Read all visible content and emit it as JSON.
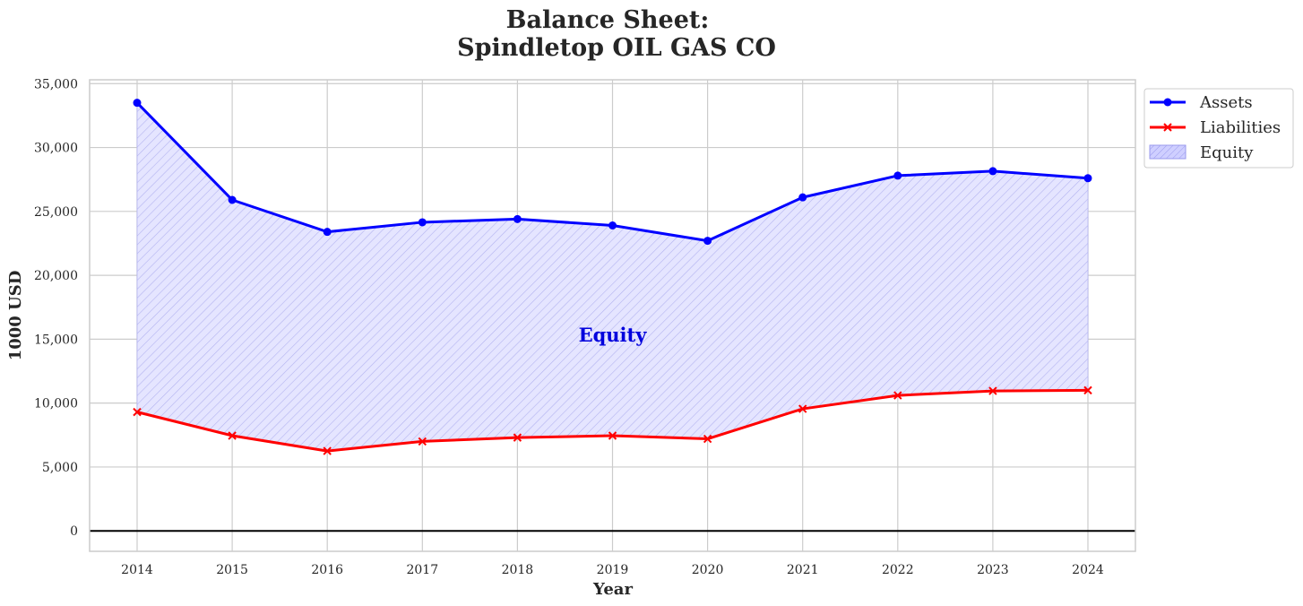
{
  "chart_data": {
    "type": "line",
    "title_lines": [
      "Balance Sheet:",
      "Spindletop OIL GAS CO"
    ],
    "xlabel": "Year",
    "ylabel": "1000 USD",
    "categories": [
      "2014",
      "2015",
      "2016",
      "2017",
      "2018",
      "2019",
      "2020",
      "2021",
      "2022",
      "2023",
      "2024"
    ],
    "series": [
      {
        "name": "Assets",
        "color": "#0000ff",
        "marker": "circle",
        "values": [
          33500,
          25900,
          23400,
          24150,
          24400,
          23900,
          22700,
          26100,
          27800,
          28150,
          27600
        ]
      },
      {
        "name": "Liabilities",
        "color": "#ff0000",
        "marker": "x",
        "values": [
          9300,
          7450,
          6250,
          7000,
          7300,
          7450,
          7200,
          9550,
          10600,
          10950,
          11000
        ]
      }
    ],
    "fill": {
      "name": "Equity",
      "between": [
        "Assets",
        "Liabilities"
      ],
      "color": "#0000ff",
      "hatch": "////"
    },
    "annotation": {
      "text": "Equity",
      "x": "2019",
      "y": 15300,
      "color": "#0000dd"
    },
    "ylim": [
      -1600,
      35300
    ],
    "yticks": [
      0,
      5000,
      10000,
      15000,
      20000,
      25000,
      30000,
      35000
    ],
    "ytick_labels": [
      "0",
      "5,000",
      "10,000",
      "15,000",
      "20,000",
      "25,000",
      "30,000",
      "35,000"
    ],
    "zero_line": true,
    "grid": true,
    "legend": {
      "location": "outside upper-right",
      "entries": [
        "Assets",
        "Liabilities",
        "Equity"
      ]
    }
  }
}
